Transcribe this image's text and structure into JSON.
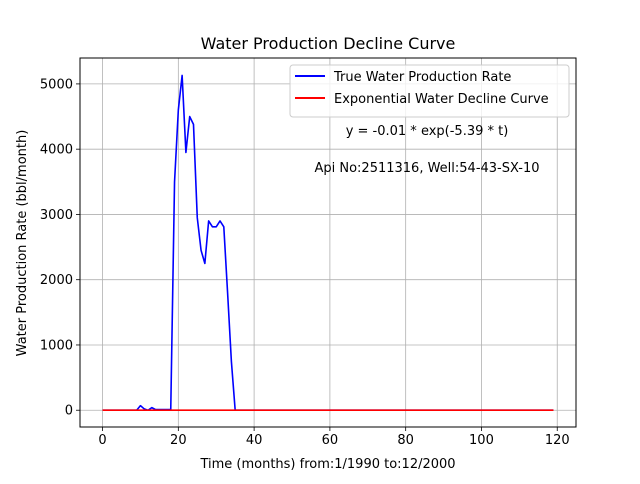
{
  "chart_data": {
    "type": "line",
    "title": "Water Production Decline Curve",
    "xlabel": "Time (months) from:1/1990 to:12/2000",
    "ylabel": "Water Production Rate (bbl/month)",
    "xlim": [
      -5.95,
      124.95
    ],
    "ylim": [
      -257,
      5397
    ],
    "xticks": [
      0,
      20,
      40,
      60,
      80,
      100,
      120
    ],
    "xtick_labels": [
      "0",
      "20",
      "40",
      "60",
      "80",
      "100",
      "120"
    ],
    "yticks": [
      0,
      1000,
      2000,
      3000,
      4000,
      5000
    ],
    "ytick_labels": [
      "0",
      "1000",
      "2000",
      "3000",
      "4000",
      "5000"
    ],
    "grid": true,
    "legend_position": "top-right",
    "annotations": [
      "y = -0.01 * exp(-5.39 * t)",
      "Api No:2511316, Well:54-43-SX-10"
    ],
    "series": [
      {
        "name": "True Water Production Rate",
        "color": "#0000ff",
        "x": [
          0,
          1,
          2,
          3,
          4,
          5,
          6,
          7,
          8,
          9,
          10,
          11,
          12,
          13,
          14,
          15,
          16,
          17,
          18,
          19,
          20,
          21,
          22,
          23,
          24,
          25,
          26,
          27,
          28,
          29,
          30,
          31,
          32,
          33,
          34,
          35,
          36,
          37,
          38,
          39,
          40,
          41,
          42,
          43,
          44,
          45,
          46,
          47,
          48,
          49,
          50,
          51,
          52,
          53,
          54,
          55,
          56,
          57,
          58,
          59,
          60,
          61,
          62,
          63,
          64,
          65,
          66,
          67,
          68,
          69,
          70,
          71,
          72,
          73,
          74,
          75,
          76,
          77,
          78,
          79,
          80,
          81,
          82,
          83,
          84,
          85,
          86,
          87,
          88,
          89,
          90,
          91,
          92,
          93,
          94,
          95,
          96,
          97,
          98,
          99,
          100,
          101,
          102,
          103,
          104,
          105,
          106,
          107,
          108,
          109,
          110,
          111,
          112,
          113,
          114,
          115,
          116,
          117,
          118,
          119
        ],
        "y": [
          0,
          0,
          0,
          0,
          0,
          0,
          0,
          0,
          0,
          0,
          70,
          20,
          0,
          40,
          10,
          10,
          10,
          10,
          10,
          3500,
          4600,
          5130,
          3950,
          4500,
          4380,
          2950,
          2450,
          2250,
          2900,
          2810,
          2810,
          2900,
          2810,
          1800,
          750,
          0,
          0,
          0,
          0,
          0,
          0,
          0,
          0,
          0,
          0,
          0,
          0,
          0,
          0,
          0,
          0,
          0,
          0,
          0,
          0,
          0,
          0,
          0,
          0,
          0,
          0,
          0,
          0,
          0,
          0,
          0,
          0,
          0,
          0,
          0,
          0,
          0,
          0,
          0,
          0,
          0,
          0,
          0,
          0,
          0,
          0,
          0,
          0,
          0,
          0,
          0,
          0,
          0,
          0,
          0,
          0,
          0,
          0,
          0,
          0,
          0,
          0,
          0,
          0,
          0,
          0,
          0,
          0,
          0,
          0,
          0,
          0,
          0,
          0,
          0,
          0,
          0,
          0,
          0,
          0,
          0,
          0,
          0,
          0,
          0
        ]
      },
      {
        "name": "Exponential Water Decline Curve",
        "color": "#ff0000",
        "x": [
          0,
          1,
          2,
          3,
          4,
          5,
          6,
          7,
          8,
          9,
          10,
          11,
          12,
          13,
          14,
          15,
          16,
          17,
          18,
          19,
          20,
          21,
          22,
          23,
          24,
          25,
          26,
          27,
          28,
          29,
          30,
          31,
          32,
          33,
          34,
          35,
          36,
          37,
          38,
          39,
          40,
          41,
          42,
          43,
          44,
          45,
          46,
          47,
          48,
          49,
          50,
          51,
          52,
          53,
          54,
          55,
          56,
          57,
          58,
          59,
          60,
          61,
          62,
          63,
          64,
          65,
          66,
          67,
          68,
          69,
          70,
          71,
          72,
          73,
          74,
          75,
          76,
          77,
          78,
          79,
          80,
          81,
          82,
          83,
          84,
          85,
          86,
          87,
          88,
          89,
          90,
          91,
          92,
          93,
          94,
          95,
          96,
          97,
          98,
          99,
          100,
          101,
          102,
          103,
          104,
          105,
          106,
          107,
          108,
          109,
          110,
          111,
          112,
          113,
          114,
          115,
          116,
          117,
          118,
          119
        ],
        "y": [
          -0.01,
          0,
          0,
          0,
          0,
          0,
          0,
          0,
          0,
          0,
          0,
          0,
          0,
          0,
          0,
          0,
          0,
          0,
          0,
          0,
          0,
          0,
          0,
          0,
          0,
          0,
          0,
          0,
          0,
          0,
          0,
          0,
          0,
          0,
          0,
          0,
          0,
          0,
          0,
          0,
          0,
          0,
          0,
          0,
          0,
          0,
          0,
          0,
          0,
          0,
          0,
          0,
          0,
          0,
          0,
          0,
          0,
          0,
          0,
          0,
          0,
          0,
          0,
          0,
          0,
          0,
          0,
          0,
          0,
          0,
          0,
          0,
          0,
          0,
          0,
          0,
          0,
          0,
          0,
          0,
          0,
          0,
          0,
          0,
          0,
          0,
          0,
          0,
          0,
          0,
          0,
          0,
          0,
          0,
          0,
          0,
          0,
          0,
          0,
          0,
          0,
          0,
          0,
          0,
          0,
          0,
          0,
          0,
          0,
          0,
          0,
          0,
          0,
          0,
          0,
          0,
          0,
          0,
          0,
          0
        ]
      }
    ]
  }
}
